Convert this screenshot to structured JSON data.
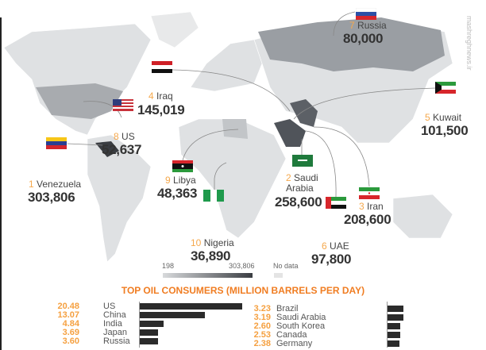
{
  "producers": [
    {
      "rank": "1",
      "country": "Venezuela",
      "value": "303,806"
    },
    {
      "rank": "2",
      "country": "Saudi Arabia",
      "value": "258,600"
    },
    {
      "rank": "3",
      "country": "Iran",
      "value": "208,600"
    },
    {
      "rank": "4",
      "country": "Iraq",
      "value": "145,019"
    },
    {
      "rank": "5",
      "country": "Kuwait",
      "value": "101,500"
    },
    {
      "rank": "6",
      "country": "UAE",
      "value": "97,800"
    },
    {
      "rank": "7",
      "country": "Russia",
      "value": "80,000"
    },
    {
      "rank": "8",
      "country": "US",
      "value": "52,637"
    },
    {
      "rank": "9",
      "country": "Libya",
      "value": "48,363"
    },
    {
      "rank": "10",
      "country": "Nigeria",
      "value": "36,890"
    }
  ],
  "legend": {
    "min": "198",
    "max": "303,806",
    "no_data": "No data",
    "colors": {
      "low": "#d8dadc",
      "high": "#3a3d42",
      "no_data": "#e4e4e4"
    }
  },
  "watermark": "mashreghnews.ir",
  "chart_data": {
    "type": "bar",
    "title": "TOP OIL CONSUMERS (MILLION BARRELS PER DAY)",
    "categories": [
      "US",
      "China",
      "India",
      "Japan",
      "Russia",
      "Brazil",
      "Saudi Arabia",
      "South Korea",
      "Canada",
      "Germany"
    ],
    "values": [
      20.48,
      13.07,
      4.84,
      3.69,
      3.6,
      3.23,
      3.19,
      2.6,
      2.53,
      2.38
    ],
    "labels": [
      "20.48",
      "13.07",
      "4.84",
      "3.69",
      "3.60",
      "3.23",
      "3.19",
      "2.60",
      "2.53",
      "2.38"
    ],
    "bar_color": "#2b2b2b",
    "value_color": "#f5a040",
    "title_color": "#f07d22"
  }
}
